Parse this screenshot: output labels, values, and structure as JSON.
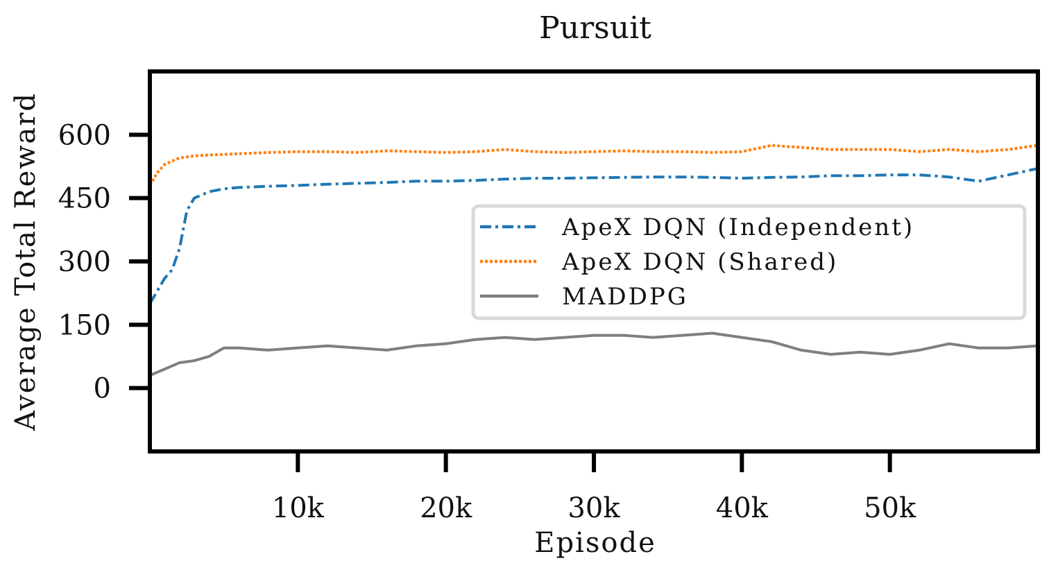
{
  "chart_data": {
    "type": "line",
    "title": "Pursuit",
    "xlabel": "Episode",
    "ylabel": "Average Total Reward",
    "xlim": [
      0,
      60000
    ],
    "ylim": [
      -150,
      750
    ],
    "xticks": [
      10000,
      20000,
      30000,
      40000,
      50000
    ],
    "xtick_labels": [
      "10k",
      "20k",
      "30k",
      "40k",
      "50k"
    ],
    "yticks": [
      0,
      150,
      300,
      450,
      600
    ],
    "ytick_labels": [
      "0",
      "150",
      "300",
      "450",
      "600"
    ],
    "grid": false,
    "legend_position": "center-right",
    "series": [
      {
        "name": "ApeX DQN (Independent)",
        "color": "#1f77b4",
        "style": "dashdot",
        "x": [
          0,
          1000,
          1500,
          2000,
          2500,
          3000,
          4000,
          5000,
          6000,
          8000,
          10000,
          12000,
          14000,
          16000,
          18000,
          20000,
          22000,
          24000,
          26000,
          28000,
          30000,
          32000,
          34000,
          36000,
          38000,
          40000,
          42000,
          44000,
          46000,
          48000,
          50000,
          52000,
          54000,
          56000,
          58000,
          60000
        ],
        "y": [
          200,
          260,
          280,
          330,
          420,
          450,
          465,
          472,
          475,
          478,
          480,
          483,
          485,
          487,
          490,
          490,
          492,
          495,
          497,
          497,
          498,
          499,
          500,
          500,
          499,
          497,
          499,
          500,
          503,
          503,
          505,
          505,
          500,
          490,
          505,
          520
        ]
      },
      {
        "name": "ApeX DQN (Shared)",
        "color": "#ff7f0e",
        "style": "dotted",
        "x": [
          0,
          500,
          1000,
          2000,
          3000,
          4000,
          6000,
          8000,
          10000,
          12000,
          14000,
          16000,
          18000,
          20000,
          22000,
          24000,
          26000,
          28000,
          30000,
          32000,
          34000,
          36000,
          38000,
          40000,
          42000,
          44000,
          46000,
          48000,
          50000,
          52000,
          54000,
          56000,
          58000,
          60000
        ],
        "y": [
          480,
          510,
          530,
          545,
          550,
          552,
          555,
          558,
          560,
          560,
          558,
          562,
          560,
          558,
          560,
          565,
          560,
          558,
          560,
          562,
          560,
          560,
          558,
          560,
          575,
          570,
          565,
          565,
          565,
          560,
          565,
          560,
          565,
          575
        ]
      },
      {
        "name": "MADDPG",
        "color": "#7f7f7f",
        "style": "solid",
        "x": [
          0,
          1000,
          2000,
          3000,
          4000,
          5000,
          6000,
          8000,
          10000,
          12000,
          14000,
          16000,
          18000,
          20000,
          22000,
          24000,
          26000,
          28000,
          30000,
          32000,
          34000,
          36000,
          38000,
          40000,
          42000,
          44000,
          46000,
          48000,
          50000,
          52000,
          54000,
          56000,
          58000,
          60000
        ],
        "y": [
          30,
          45,
          60,
          65,
          75,
          95,
          95,
          90,
          95,
          100,
          95,
          90,
          100,
          105,
          115,
          120,
          115,
          120,
          125,
          125,
          120,
          125,
          130,
          120,
          110,
          90,
          80,
          85,
          80,
          90,
          105,
          95,
          95,
          100
        ]
      }
    ]
  }
}
